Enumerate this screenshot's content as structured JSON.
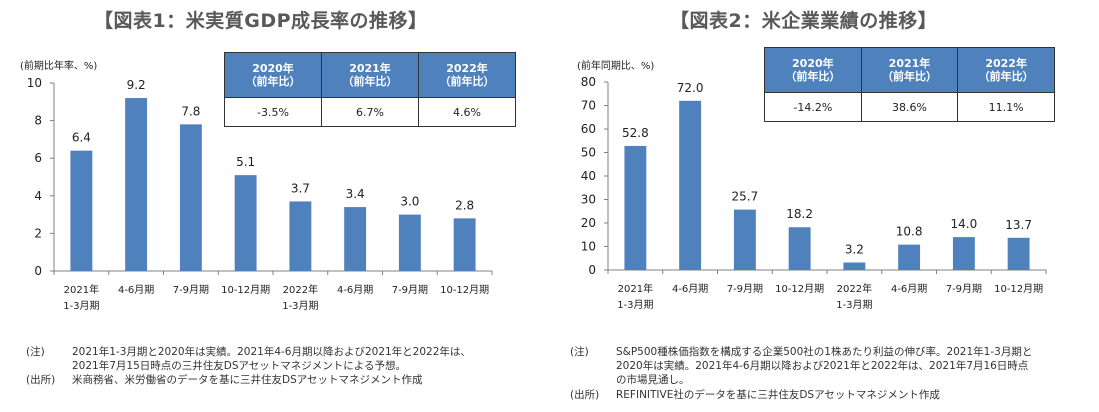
{
  "chart_data": [
    {
      "type": "bar",
      "title": "【図表1：米実質GDP成長率の推移】",
      "ylabel": "(前期比年率、%)",
      "xlabel": "",
      "ylim": [
        0,
        10
      ],
      "yticks": [
        0,
        2,
        4,
        6,
        8,
        10
      ],
      "categories": [
        [
          "2021年",
          "1-3月期"
        ],
        [
          "4-6月期"
        ],
        [
          "7-9月期"
        ],
        [
          "10-12月期"
        ],
        [
          "2022年",
          "1-3月期"
        ],
        [
          "4-6月期"
        ],
        [
          "7-9月期"
        ],
        [
          "10-12月期"
        ]
      ],
      "values": [
        6.4,
        9.2,
        7.8,
        5.1,
        3.7,
        3.4,
        3.0,
        2.8
      ],
      "value_labels": [
        "6.4",
        "9.2",
        "7.8",
        "5.1",
        "3.7",
        "3.4",
        "3.0",
        "2.8"
      ],
      "bar_color": "#4f81bd",
      "grid": false,
      "summary_table": {
        "headers": [
          [
            "2020年",
            "（前年比）"
          ],
          [
            "2021年",
            "（前年比）"
          ],
          [
            "2022年",
            "（前年比）"
          ]
        ],
        "values": [
          "-3.5%",
          "6.7%",
          "4.6%"
        ]
      }
    },
    {
      "type": "bar",
      "title": "【図表2：米企業業績の推移】",
      "ylabel": "(前年同期比、%)",
      "xlabel": "",
      "ylim": [
        0,
        80
      ],
      "yticks": [
        0,
        10,
        20,
        30,
        40,
        50,
        60,
        70,
        80
      ],
      "categories": [
        [
          "2021年",
          "1-3月期"
        ],
        [
          "4-6月期"
        ],
        [
          "7-9月期"
        ],
        [
          "10-12月期"
        ],
        [
          "2022年",
          "1-3月期"
        ],
        [
          "4-6月期"
        ],
        [
          "7-9月期"
        ],
        [
          "10-12月期"
        ]
      ],
      "values": [
        52.8,
        72.0,
        25.7,
        18.2,
        3.2,
        10.8,
        14.0,
        13.7
      ],
      "value_labels": [
        "52.8",
        "72.0",
        "25.7",
        "18.2",
        "3.2",
        "10.8",
        "14.0",
        "13.7"
      ],
      "bar_color": "#4f81bd",
      "grid": false,
      "summary_table": {
        "headers": [
          [
            "2020年",
            "（前年比）"
          ],
          [
            "2021年",
            "（前年比）"
          ],
          [
            "2022年",
            "（前年比）"
          ]
        ],
        "values": [
          "-14.2%",
          "38.6%",
          "11.1%"
        ]
      }
    }
  ],
  "notes": [
    {
      "note_label": "(注)",
      "note_lines": [
        "2021年1-3月期と2020年は実績。2021年4-6月期以降および2021年と2022年は、",
        "2021年7月15日時点の三井住友DSアセットマネジメントによる予想。"
      ],
      "source_label": "(出所)",
      "source_text": "米商務省、米労働省のデータを基に三井住友DSアセットマネジメント作成"
    },
    {
      "note_label": "(注)",
      "note_lines": [
        " S&P500種株価指数を構成する企業500社の1株あたり利益の伸び率。2021年1-3月期と",
        "2020年は実績。2021年4-6月期以降および2021年と2022年は、2021年7月16日時点",
        "の市場見通し。"
      ],
      "source_label": "(出所)",
      "source_text": "REFINITIVE社のデータを基に三井住友DSアセットマネジメント作成"
    }
  ]
}
